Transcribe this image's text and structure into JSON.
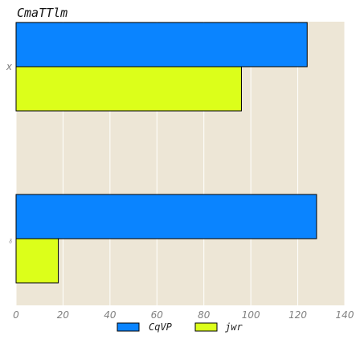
{
  "chart_data": {
    "type": "bar",
    "orientation": "horizontal",
    "title": "CmaTTlm",
    "xlabel": "",
    "ylabel": "",
    "categories": [
      "x",
      "ᵹ"
    ],
    "series": [
      {
        "name": "CqVP",
        "values": [
          124,
          128
        ],
        "color": "#0a84ff"
      },
      {
        "name": "jwr",
        "values": [
          96,
          18
        ],
        "color": "#dcff1a"
      }
    ],
    "xlim": [
      0,
      140
    ],
    "xticks": [
      "0",
      "20",
      "40",
      "60",
      "80",
      "100",
      "120",
      "140"
    ],
    "grid": true,
    "legend_position": "bottom-center",
    "background": "#ede6d6"
  }
}
